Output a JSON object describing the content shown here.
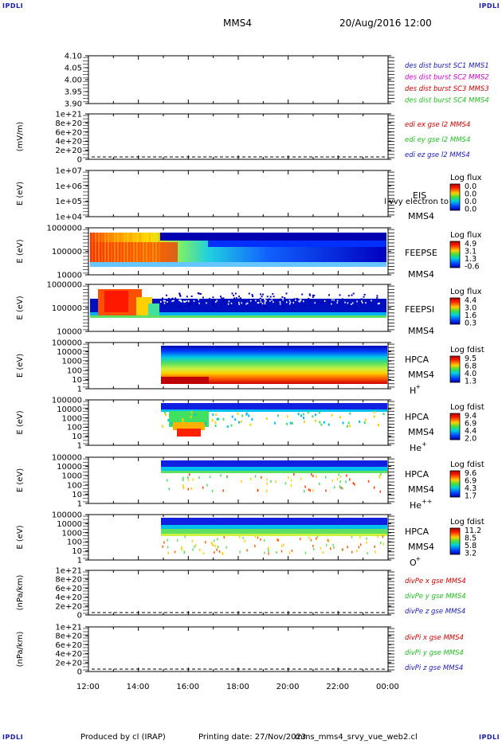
{
  "header": {
    "corner_label": "IPDLI",
    "spacecraft": "MMS4",
    "datetime": "20/Aug/2016 12:00"
  },
  "footer": {
    "produced_by": "Produced by cl (IRAP)",
    "printing_date": "Printing date: 27/Nov/2023",
    "filename": "mms_mms4_srvy_vue_web2.cl"
  },
  "colors": {
    "blue": "#1a1ab0",
    "magenta": "#cc00cc",
    "red": "#cc0000",
    "green": "#22bb22"
  },
  "chart_data": {
    "type": "heatmap",
    "x_ticks": [
      "12:00",
      "14:00",
      "16:00",
      "18:00",
      "20:00",
      "22:00",
      "00:00"
    ],
    "panels": [
      {
        "id": "sc-pos",
        "ylabel": "",
        "ytick_labels": [
          "4.10",
          "4.05",
          "4.00",
          "3.95",
          "3.90"
        ],
        "legend": [
          {
            "text": "des dist burst SC1 MMS1",
            "color": "#1a1ab0"
          },
          {
            "text": "des dist burst SC2 MMS2",
            "color": "#cc00cc"
          },
          {
            "text": "des dist burst SC3 MMS3",
            "color": "#cc0000"
          },
          {
            "text": "des dist burst SC4 MMS4",
            "color": "#22bb22"
          }
        ]
      },
      {
        "id": "edi",
        "ylabel": "(mV/m)",
        "ytick_labels": [
          "1e+21",
          "8e+20",
          "6e+20",
          "4e+20",
          "2e+20",
          "0"
        ],
        "legend": [
          {
            "text": "edi ex gse l2 MMS4",
            "color": "#cc0000"
          },
          {
            "text": "edi ey gse l2 MMS4",
            "color": "#22bb22"
          },
          {
            "text": "edi ez gse l2 MMS4",
            "color": "#1a1ab0"
          }
        ]
      },
      {
        "id": "eis",
        "ylabel": "E (eV)",
        "ytick_labels": [
          "1e+07",
          "1e+06",
          "1e+05",
          "1e+04"
        ],
        "instrument": "EIS",
        "overlay": "l vvy electron to",
        "spacecraft": "MMS4",
        "colorbar_title": "Log flux",
        "colorbar_labels": [
          "0.0",
          "0.0",
          "0.0",
          "0.0"
        ]
      },
      {
        "id": "feepse",
        "ylabel": "E (eV)",
        "ytick_labels": [
          "1000000",
          "100000",
          "10000"
        ],
        "instrument": "FEEPSE",
        "spacecraft": "MMS4",
        "colorbar_title": "Log flux",
        "colorbar_labels": [
          "4.9",
          "3.1",
          "1.3",
          "-0.6"
        ]
      },
      {
        "id": "feepsi",
        "ylabel": "E (eV)",
        "ytick_labels": [
          "1000000",
          "100000",
          "10000"
        ],
        "instrument": "FEEPSI",
        "spacecraft": "MMS4",
        "colorbar_title": "Log flux",
        "colorbar_labels": [
          "4.4",
          "3.0",
          "1.6",
          "0.3"
        ]
      },
      {
        "id": "hpca-h",
        "ylabel": "E (eV)",
        "ytick_labels": [
          "100000",
          "10000",
          "1000",
          "100",
          "10",
          "1"
        ],
        "instrument": "HPCA",
        "spacecraft": "MMS4",
        "species": "H",
        "species_sup": "+",
        "colorbar_title": "Log fdist",
        "colorbar_labels": [
          "9.5",
          "6.8",
          "4.0",
          "1.3"
        ]
      },
      {
        "id": "hpca-he",
        "ylabel": "E (eV)",
        "ytick_labels": [
          "100000",
          "10000",
          "1000",
          "100",
          "10",
          "1"
        ],
        "instrument": "HPCA",
        "spacecraft": "MMS4",
        "species": "He",
        "species_sup": "+",
        "colorbar_title": "Log fdist",
        "colorbar_labels": [
          "9.4",
          "6.9",
          "4.4",
          "2.0"
        ]
      },
      {
        "id": "hpca-hepp",
        "ylabel": "E (eV)",
        "ytick_labels": [
          "100000",
          "10000",
          "1000",
          "100",
          "10",
          "1"
        ],
        "instrument": "HPCA",
        "spacecraft": "MMS4",
        "species": "He",
        "species_sup": "++",
        "colorbar_title": "Log fdist",
        "colorbar_labels": [
          "9.6",
          "6.9",
          "4.3",
          "1.7"
        ]
      },
      {
        "id": "hpca-o",
        "ylabel": "E (eV)",
        "ytick_labels": [
          "100000",
          "10000",
          "1000",
          "100",
          "10",
          "1"
        ],
        "instrument": "HPCA",
        "spacecraft": "MMS4",
        "species": "O",
        "species_sup": "+",
        "colorbar_title": "Log fdist",
        "colorbar_labels": [
          "11.2",
          "8.5",
          "5.8",
          "3.2"
        ]
      },
      {
        "id": "divpe",
        "ylabel": "(nPa/km)",
        "ytick_labels": [
          "1e+21",
          "8e+20",
          "6e+20",
          "4e+20",
          "2e+20",
          "0"
        ],
        "legend": [
          {
            "text": "divPe x gse MMS4",
            "color": "#cc0000"
          },
          {
            "text": "divPe y gse MMS4",
            "color": "#22bb22"
          },
          {
            "text": "divPe z gse MMS4",
            "color": "#1a1ab0"
          }
        ]
      },
      {
        "id": "divpi",
        "ylabel": "(nPa/km)",
        "ytick_labels": [
          "1e+21",
          "8e+20",
          "6e+20",
          "4e+20",
          "2e+20",
          "0"
        ],
        "legend": [
          {
            "text": "divPi x gse MMS4",
            "color": "#cc0000"
          },
          {
            "text": "divPi y gse MMS4",
            "color": "#22bb22"
          },
          {
            "text": "divPi z gse MMS4",
            "color": "#1a1ab0"
          }
        ]
      }
    ]
  }
}
